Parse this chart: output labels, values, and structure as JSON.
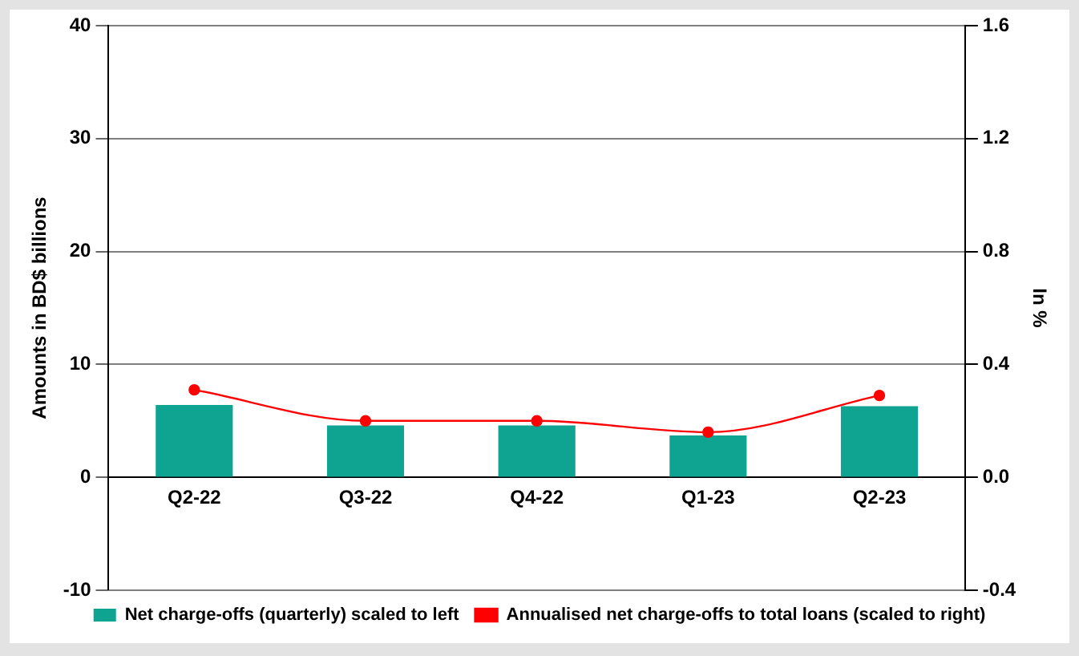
{
  "chart_data": {
    "type": "bar",
    "ylabel": "Amounts in BD$ billions",
    "y2label": "In %",
    "categories": [
      "Q2-22",
      "Q3-22",
      "Q4-22",
      "Q1-23",
      "Q2-23"
    ],
    "series": [
      {
        "name": "Net charge-offs (quarterly) scaled to left",
        "color": "#0fa392",
        "values": [
          6.4,
          4.6,
          4.6,
          3.7,
          6.3
        ]
      },
      {
        "name": "Annualised net charge-offs to total loans (scaled to right)",
        "type": "line",
        "axis": "y2",
        "color": "#ff0000",
        "marker": "circle",
        "values": [
          0.31,
          0.2,
          0.2,
          0.16,
          0.29
        ]
      }
    ],
    "ylim": [
      -10,
      40
    ],
    "yticks": [
      -10,
      0,
      10,
      20,
      30,
      40
    ],
    "y2lim": [
      -0.4,
      1.6
    ],
    "y2ticks": [
      {
        "value": -0.4,
        "label": "-0.4"
      },
      {
        "value": 0,
        "label": "0.0"
      },
      {
        "value": 0.4,
        "label": "0.4"
      },
      {
        "value": 0.8,
        "label": "0.8"
      },
      {
        "value": 1.2,
        "label": "1.2"
      },
      {
        "value": 1.6,
        "label": "1.6"
      }
    ],
    "grid": "y",
    "legend": "bottom"
  }
}
